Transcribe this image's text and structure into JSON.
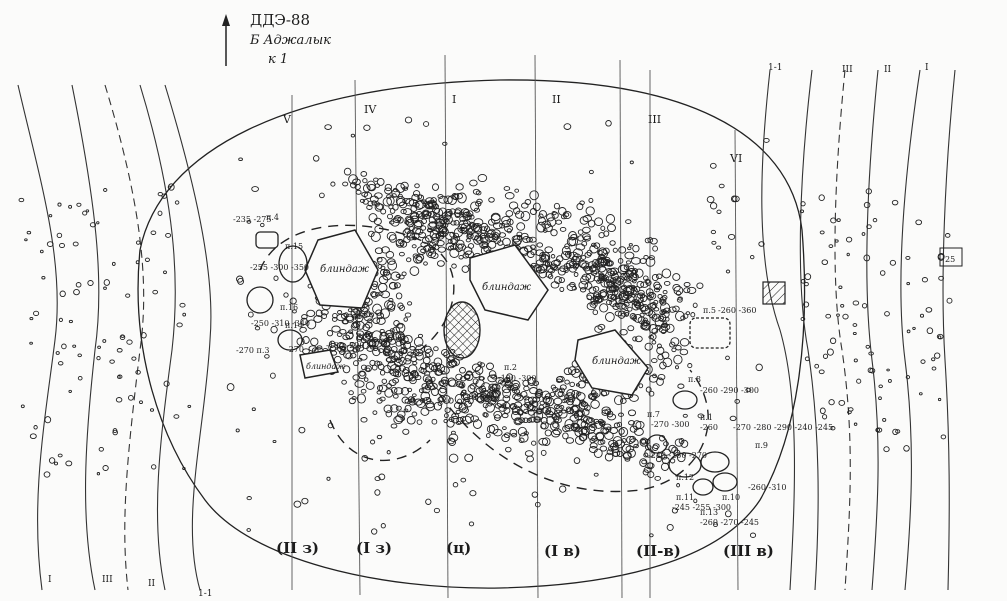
{
  "header": {
    "expedition": "ДДЭ-88",
    "site": "Б Аджалык",
    "kurgan": "к 1"
  },
  "bottom_sectors": [
    "(II з)",
    "(I з)",
    "(ц)",
    "(I в)",
    "(II-в)",
    "(III в)"
  ],
  "top_sectors": [
    "V",
    "IV",
    "I",
    "II",
    "III",
    "VI"
  ],
  "outer_marks": [
    "1-1",
    "III",
    "II",
    "I"
  ],
  "structures": [
    "блиндаж",
    "блиндаж",
    "блиндаж",
    "блиндаж"
  ],
  "burials": [
    {
      "label": "п.4",
      "depths": "-235 -275"
    },
    {
      "label": "п.15",
      "depths": "-255 -300 -350"
    },
    {
      "label": "п.16",
      "depths": "-250 -310 -340"
    },
    {
      "label": "п.3",
      "depths": "-270 п.3"
    },
    {
      "label": "п.14",
      "depths": "-270"
    },
    {
      "label": "п.17",
      "depths": "-190 -290"
    },
    {
      "label": "п.2",
      "depths": "-190 -300"
    },
    {
      "label": "п.5",
      "depths": "-260 -360"
    },
    {
      "label": "п.8",
      "depths": "-260 -290 -300"
    },
    {
      "label": "п.7",
      "depths": "-270 -300"
    },
    {
      "label": "п.1",
      "depths": "-260"
    },
    {
      "label": "п.9",
      "depths": "-270 -280 -290 -240 -245"
    },
    {
      "label": "п.12",
      "depths": "-240 -250 -270"
    },
    {
      "label": "п.11",
      "depths": "-245 -255 -300"
    },
    {
      "label": "п.13",
      "depths": "-260 -270 -245"
    },
    {
      "label": "п.10",
      "depths": "-260 -310"
    }
  ],
  "side_marks": [
    "25"
  ]
}
